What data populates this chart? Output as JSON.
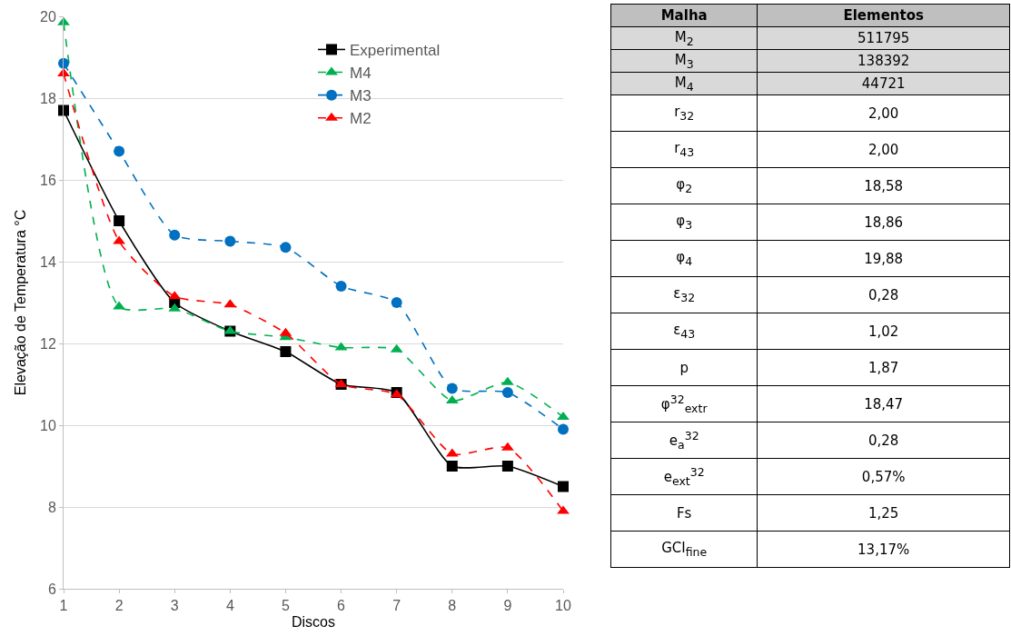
{
  "chart_data": [
    {
      "type": "line",
      "xlabel": "Discos",
      "ylabel": "Elevação de Temperatura °C",
      "x": [
        1,
        2,
        3,
        4,
        5,
        6,
        7,
        8,
        9,
        10
      ],
      "xlim": [
        1,
        10
      ],
      "xticks": [
        1,
        2,
        3,
        4,
        5,
        6,
        7,
        8,
        9,
        10
      ],
      "ylim": [
        6,
        20
      ],
      "yticks": [
        6,
        8,
        10,
        12,
        14,
        16,
        18,
        20
      ],
      "grid": "y",
      "legend": "top right",
      "series": [
        {
          "name": "Experimental",
          "color": "#000000",
          "marker": "square",
          "line_style": "solid",
          "values": [
            17.7,
            15.0,
            13.0,
            12.3,
            11.8,
            11.0,
            10.8,
            9.0,
            9.0,
            8.5
          ]
        },
        {
          "name": "M4",
          "color": "#00b050",
          "marker": "triangle",
          "line_style": "dashed",
          "values": [
            19.85,
            12.9,
            12.85,
            12.3,
            12.15,
            11.9,
            11.85,
            10.6,
            11.05,
            10.2
          ]
        },
        {
          "name": "M3",
          "color": "#0070c0",
          "marker": "circle",
          "line_style": "dashed",
          "values": [
            18.85,
            16.7,
            14.65,
            14.5,
            14.35,
            13.4,
            13.0,
            10.9,
            10.8,
            9.9
          ]
        },
        {
          "name": "M2",
          "color": "#ff0000",
          "marker": "triangle",
          "line_style": "dashed",
          "values": [
            18.6,
            14.5,
            13.15,
            12.95,
            12.25,
            11.0,
            10.75,
            9.3,
            9.45,
            7.9
          ]
        }
      ]
    },
    {
      "type": "other",
      "categories": [
        "Malha",
        "Elementos"
      ],
      "y_categories": [
        "M$_{2}$",
        "M$_{3}$",
        "M$_{4}$",
        "r$_{32}$",
        "r$_{43}$",
        "φ$_{2}$",
        "φ$_{3}$",
        "φ$_{4}$",
        "ε$_{32}$",
        "ε$_{43}$",
        "p",
        "φ$^{32}$$_{extr}$",
        "e$_{a}$$^{32}$",
        "e$_{ext}$$^{32}$",
        "Fs",
        "GCI$_{fine}$"
      ],
      "cell_labels": [
        [
          "511795"
        ],
        [
          "138392"
        ],
        [
          "44721"
        ],
        [
          "2,00"
        ],
        [
          "2,00"
        ],
        [
          "18,58"
        ],
        [
          "18,86"
        ],
        [
          "19,88"
        ],
        [
          "0,28"
        ],
        [
          "1,02"
        ],
        [
          "1,87"
        ],
        [
          "18,47"
        ],
        [
          "0,28"
        ],
        [
          "0,57%"
        ],
        [
          "1,25"
        ],
        [
          "13,17%"
        ]
      ]
    }
  ]
}
